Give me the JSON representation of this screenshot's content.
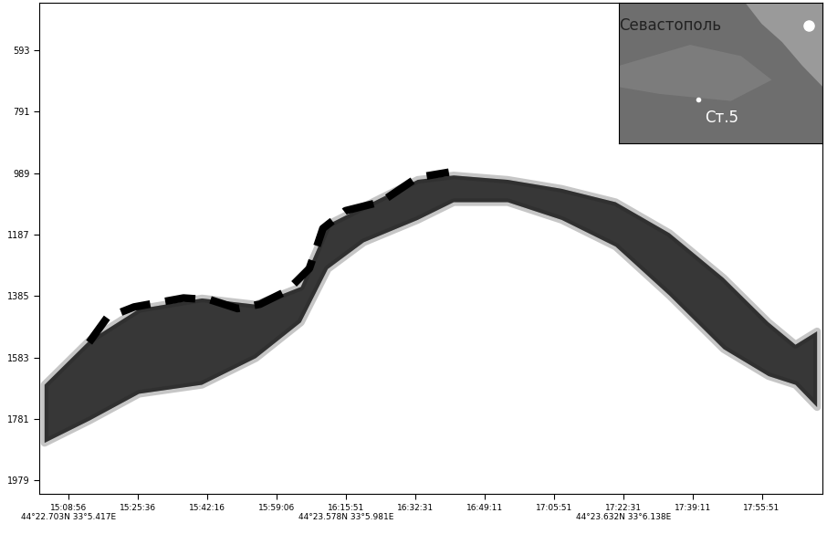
{
  "chart_data": {
    "type": "line",
    "ylim": [
      2022,
      440
    ],
    "yticks": [
      593,
      791,
      989,
      1187,
      1385,
      1583,
      1781,
      1979
    ],
    "xlim": [
      "15:02:01",
      "18:10:34"
    ],
    "xticks": [
      {
        "value": "15:08:56",
        "label": "15:08:56\n44°22.703N 33°5.417E"
      },
      {
        "value": "15:25:36",
        "label": "15:25:36"
      },
      {
        "value": "15:42:16",
        "label": "15:42:16"
      },
      {
        "value": "15:59:06",
        "label": "15:59:06"
      },
      {
        "value": "16:15:51",
        "label": "16:15:51\n44°23.578N 33°5.981E"
      },
      {
        "value": "16:32:31",
        "label": "16:32:31"
      },
      {
        "value": "16:49:11",
        "label": "16:49:11"
      },
      {
        "value": "17:05:51",
        "label": "17:05:51"
      },
      {
        "value": "17:22:31",
        "label": "17:22:31\n44°23.632N 33°6.138E"
      },
      {
        "value": "17:39:11",
        "label": "17:39:11"
      },
      {
        "value": "17:55:51",
        "label": "17:55:51"
      }
    ],
    "grid": false,
    "series": [
      {
        "type": "area",
        "color": "#1e1e1e",
        "x": [
          "15:03:05",
          "15:13:55",
          "15:25:49",
          "15:40:59",
          "15:53:58",
          "16:04:47",
          "16:11:17",
          "16:19:57",
          "16:32:56",
          "16:41:36",
          "16:54:35",
          "17:07:35",
          "17:20:34",
          "17:33:33",
          "17:46:33",
          "17:57:22",
          "18:03:52",
          "18:09:04"
        ],
        "upper": [
          1669,
          1526,
          1425,
          1391,
          1411,
          1354,
          1153,
          1095,
          1009,
          995,
          1009,
          1038,
          1081,
          1181,
          1325,
          1468,
          1540,
          1497
        ],
        "lower": [
          1856,
          1784,
          1698,
          1669,
          1583,
          1468,
          1296,
          1210,
          1138,
          1081,
          1081,
          1138,
          1224,
          1382,
          1554,
          1641,
          1669,
          1741
        ]
      },
      {
        "type": "line",
        "color": "#000000",
        "line_style": "dashed",
        "x": [
          "15:13:55",
          "15:18:15",
          "15:24:44",
          "15:36:39",
          "15:43:08",
          "15:49:38",
          "15:55:03",
          "16:01:33",
          "16:06:57",
          "16:10:12",
          "16:15:37",
          "16:24:17",
          "16:32:56",
          "16:40:31"
        ],
        "values": [
          1534,
          1454,
          1420,
          1391,
          1397,
          1425,
          1411,
          1368,
          1296,
          1167,
          1110,
          1081,
          1003,
          986
        ]
      }
    ],
    "inset_texts": {
      "city": "Севастополь",
      "station": "Ст.5"
    }
  }
}
